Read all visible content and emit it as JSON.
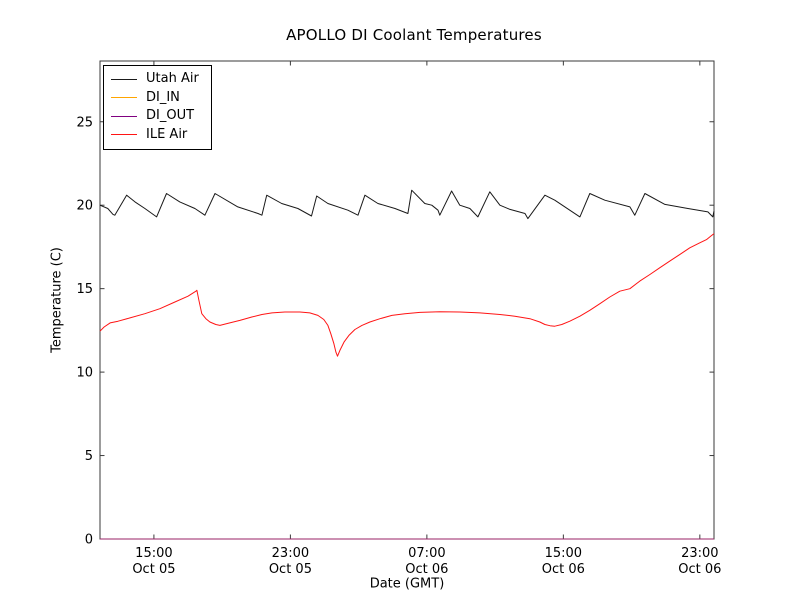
{
  "chart_data": {
    "type": "line",
    "title": "APOLLO DI Coolant Temperatures",
    "xlabel": "Date (GMT)",
    "ylabel": "Temperature (C)",
    "grid": false,
    "legend_position": "upper left",
    "background_color": "#ffffff",
    "axis_color": "#3a3a3a",
    "xlim_hours_since_oct05_0000_gmt": [
      11.84,
      47.83
    ],
    "ylim": [
      0,
      28.64
    ],
    "y_ticks": [
      0,
      5,
      10,
      15,
      20,
      25
    ],
    "x_ticks": [
      {
        "hour": 15,
        "time": "15:00",
        "date": "Oct 05"
      },
      {
        "hour": 23,
        "time": "23:00",
        "date": "Oct 05"
      },
      {
        "hour": 31,
        "time": "07:00",
        "date": "Oct 06"
      },
      {
        "hour": 39,
        "time": "15:00",
        "date": "Oct 06"
      },
      {
        "hour": 47,
        "time": "23:00",
        "date": "Oct 06"
      }
    ],
    "series": [
      {
        "name": "Utah Air",
        "color": "#1a1a1a",
        "points": [
          [
            11.84,
            20.0
          ],
          [
            12.3,
            19.8
          ],
          [
            12.6,
            19.45
          ],
          [
            12.71,
            19.4
          ],
          [
            13.4,
            20.6
          ],
          [
            13.89,
            20.2
          ],
          [
            14.47,
            19.8
          ],
          [
            15.16,
            19.3
          ],
          [
            15.74,
            20.7
          ],
          [
            16.52,
            20.2
          ],
          [
            17.4,
            19.8
          ],
          [
            17.99,
            19.4
          ],
          [
            18.58,
            20.7
          ],
          [
            19.92,
            19.9
          ],
          [
            21.1,
            19.5
          ],
          [
            21.33,
            19.4
          ],
          [
            21.61,
            20.6
          ],
          [
            22.49,
            20.1
          ],
          [
            23.44,
            19.8
          ],
          [
            24.24,
            19.35
          ],
          [
            24.54,
            20.55
          ],
          [
            25.2,
            20.1
          ],
          [
            26.37,
            19.7
          ],
          [
            26.96,
            19.4
          ],
          [
            27.37,
            20.6
          ],
          [
            28.13,
            20.1
          ],
          [
            29.13,
            19.8
          ],
          [
            29.89,
            19.5
          ],
          [
            30.11,
            20.9
          ],
          [
            30.88,
            20.1
          ],
          [
            31.29,
            20.0
          ],
          [
            31.65,
            19.7
          ],
          [
            31.76,
            19.4
          ],
          [
            32.45,
            20.85
          ],
          [
            32.93,
            20.0
          ],
          [
            33.52,
            19.8
          ],
          [
            33.99,
            19.3
          ],
          [
            34.69,
            20.8
          ],
          [
            35.28,
            20.0
          ],
          [
            35.87,
            19.75
          ],
          [
            36.75,
            19.5
          ],
          [
            36.92,
            19.2
          ],
          [
            37.92,
            20.6
          ],
          [
            38.5,
            20.3
          ],
          [
            39.97,
            19.3
          ],
          [
            40.55,
            20.7
          ],
          [
            41.43,
            20.3
          ],
          [
            42.9,
            19.9
          ],
          [
            43.19,
            19.4
          ],
          [
            43.78,
            20.7
          ],
          [
            44.95,
            20.05
          ],
          [
            46.3,
            19.8
          ],
          [
            47.47,
            19.6
          ],
          [
            47.76,
            19.3
          ],
          [
            47.83,
            19.65
          ]
        ]
      },
      {
        "name": "DI_IN",
        "color": "#ffa500",
        "points": [
          [
            11.84,
            0
          ],
          [
            47.83,
            0
          ]
        ]
      },
      {
        "name": "DI_OUT",
        "color": "#800080",
        "opacity": 0.8,
        "points": [
          [
            11.84,
            0
          ],
          [
            47.83,
            0
          ]
        ]
      },
      {
        "name": "ILE Air",
        "color": "#ff1414",
        "points": [
          [
            11.84,
            12.45
          ],
          [
            12.08,
            12.7
          ],
          [
            12.43,
            12.95
          ],
          [
            12.9,
            13.05
          ],
          [
            13.6,
            13.25
          ],
          [
            14.47,
            13.5
          ],
          [
            15.35,
            13.8
          ],
          [
            16.23,
            14.2
          ],
          [
            17.0,
            14.55
          ],
          [
            17.46,
            14.85
          ],
          [
            17.52,
            14.9
          ],
          [
            17.64,
            14.3
          ],
          [
            17.81,
            13.5
          ],
          [
            18.05,
            13.2
          ],
          [
            18.28,
            13.0
          ],
          [
            18.63,
            12.85
          ],
          [
            18.87,
            12.8
          ],
          [
            19.45,
            12.95
          ],
          [
            20.04,
            13.1
          ],
          [
            20.74,
            13.3
          ],
          [
            21.33,
            13.45
          ],
          [
            21.92,
            13.55
          ],
          [
            22.68,
            13.6
          ],
          [
            23.56,
            13.6
          ],
          [
            24.14,
            13.55
          ],
          [
            24.61,
            13.4
          ],
          [
            24.96,
            13.15
          ],
          [
            25.2,
            12.8
          ],
          [
            25.37,
            12.3
          ],
          [
            25.55,
            11.7
          ],
          [
            25.67,
            11.2
          ],
          [
            25.76,
            10.95
          ],
          [
            25.9,
            11.3
          ],
          [
            26.14,
            11.8
          ],
          [
            26.43,
            12.2
          ],
          [
            26.78,
            12.55
          ],
          [
            27.19,
            12.8
          ],
          [
            27.66,
            13.0
          ],
          [
            28.25,
            13.2
          ],
          [
            28.95,
            13.4
          ],
          [
            29.71,
            13.5
          ],
          [
            30.59,
            13.58
          ],
          [
            31.76,
            13.62
          ],
          [
            32.93,
            13.6
          ],
          [
            34.11,
            13.55
          ],
          [
            35.28,
            13.45
          ],
          [
            36.16,
            13.35
          ],
          [
            37.04,
            13.2
          ],
          [
            37.62,
            13.0
          ],
          [
            37.92,
            12.85
          ],
          [
            38.21,
            12.78
          ],
          [
            38.5,
            12.75
          ],
          [
            38.91,
            12.85
          ],
          [
            39.38,
            13.05
          ],
          [
            39.97,
            13.35
          ],
          [
            40.55,
            13.7
          ],
          [
            41.14,
            14.1
          ],
          [
            41.72,
            14.5
          ],
          [
            42.31,
            14.85
          ],
          [
            42.9,
            15.0
          ],
          [
            43.48,
            15.45
          ],
          [
            44.07,
            15.85
          ],
          [
            44.65,
            16.25
          ],
          [
            45.24,
            16.65
          ],
          [
            45.83,
            17.05
          ],
          [
            46.41,
            17.45
          ],
          [
            47.0,
            17.75
          ],
          [
            47.41,
            17.95
          ],
          [
            47.64,
            18.15
          ],
          [
            47.83,
            18.3
          ]
        ]
      }
    ]
  }
}
